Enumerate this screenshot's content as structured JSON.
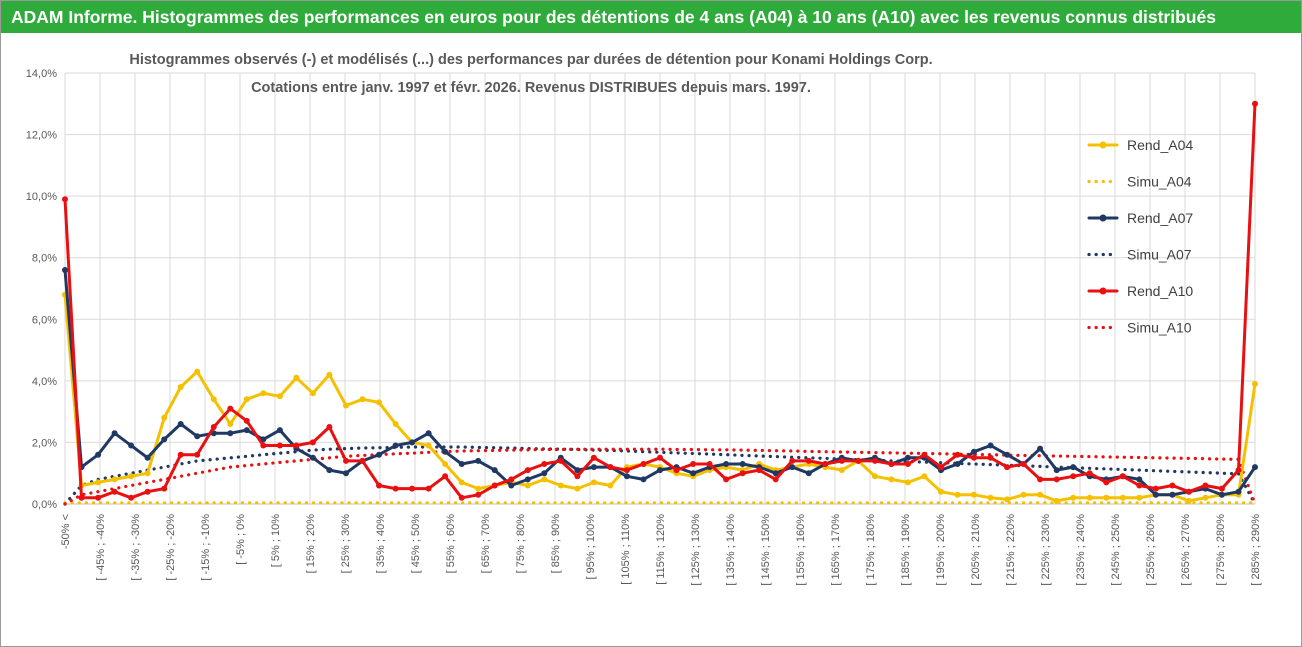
{
  "header": {
    "title": "ADAM Informe. Histogrammes des performances en euros pour des détentions de 4 ans (A04) à 10 ans (A10) avec les revenus connus distribués"
  },
  "colors": {
    "header_band": "#2eab3a",
    "A04": "#f5c000",
    "A07": "#1f3864",
    "A10": "#e81010",
    "grid": "#d9d9d9"
  },
  "chart_data": {
    "type": "line",
    "title_lines": [
      "Histogrammes observés (-) et modélisés (...) des performances par durées de détention pour Konami Holdings Corp.",
      "Cotations entre janv. 1997 et févr. 2026. Revenus DISTRIBUES depuis mars. 1997."
    ],
    "ylim": [
      0,
      14
    ],
    "y_ticks": [
      "0,0%",
      "2,0%",
      "4,0%",
      "6,0%",
      "8,0%",
      "10,0%",
      "12,0%",
      "14,0%"
    ],
    "x_labels": [
      "-50% <",
      "[ -45% ; -40%",
      "[ -35% ; -30%",
      "[ -25% ; -20%",
      "[ -15% ; -10%",
      "[ -5% ; 0%",
      "[ 5% ; 10%",
      "[ 15% ; 20%",
      "[ 25% ; 30%",
      "[ 35% ; 40%",
      "[ 45% ; 50%",
      "[ 55% ; 60%",
      "[ 65% ; 70%",
      "[ 75% ; 80%",
      "[ 85% ; 90%",
      "[ 95% ; 100%",
      "[ 105% ; 110%",
      "[ 115% ; 120%",
      "[ 125% ; 130%",
      "[ 135% ; 140%",
      "[ 145% ; 150%",
      "[ 155% ; 160%",
      "[ 165% ; 170%",
      "[ 175% ; 180%",
      "[ 185% ; 190%",
      "[ 195% ; 200%",
      "[ 205% ; 210%",
      "[ 215% ; 220%",
      "[ 225% ; 230%",
      "[ 235% ; 240%",
      "[ 245% ; 250%",
      "[ 255% ; 260%",
      "[ 265% ; 270%",
      "[ 275% ; 280%",
      "[ 285% ; 290%"
    ],
    "legend_position": "right",
    "grid": true,
    "series": [
      {
        "name": "Rend_A04",
        "style": "solid",
        "color": "#f5c000",
        "values": [
          6.8,
          0.6,
          0.7,
          0.8,
          0.9,
          1.0,
          2.8,
          3.8,
          4.3,
          3.4,
          2.6,
          3.4,
          3.6,
          3.5,
          4.1,
          3.6,
          4.2,
          3.2,
          3.4,
          3.3,
          2.6,
          2.0,
          1.9,
          1.3,
          0.7,
          0.5,
          0.6,
          0.7,
          0.6,
          0.8,
          0.6,
          0.5,
          0.7,
          0.6,
          1.2,
          1.3,
          1.2,
          1.0,
          0.9,
          1.1,
          1.2,
          1.1,
          1.3,
          1.1,
          1.2,
          1.3,
          1.2,
          1.1,
          1.4,
          0.9,
          0.8,
          0.7,
          0.9,
          0.4,
          0.3,
          0.3,
          0.2,
          0.15,
          0.3,
          0.3,
          0.1,
          0.2,
          0.2,
          0.2,
          0.2,
          0.2,
          0.3,
          0.3,
          0.1,
          0.2,
          0.3,
          0.3,
          3.9
        ]
      },
      {
        "name": "Simu_A04",
        "style": "dotted",
        "color": "#f5c000",
        "values": [
          0.04,
          0.04,
          0.04,
          0.04,
          0.04,
          0.04,
          0.04,
          0.04,
          0.04,
          0.04,
          0.04,
          0.04,
          0.04,
          0.04,
          0.04,
          0.04,
          0.04,
          0.04,
          0.04,
          0.04,
          0.04,
          0.04,
          0.04,
          0.04,
          0.04,
          0.04,
          0.04,
          0.04,
          0.04,
          0.04,
          0.04,
          0.04,
          0.04,
          0.04,
          0.04,
          0.04,
          0.04,
          0.04,
          0.04,
          0.04,
          0.04,
          0.04,
          0.04,
          0.04,
          0.04,
          0.04,
          0.04,
          0.04,
          0.04,
          0.04,
          0.04,
          0.04,
          0.04,
          0.04,
          0.04,
          0.04,
          0.04,
          0.04,
          0.04,
          0.04,
          0.04,
          0.04,
          0.04,
          0.04,
          0.04,
          0.04,
          0.04,
          0.04,
          0.04,
          0.04,
          0.04,
          0.04,
          0.04
        ]
      },
      {
        "name": "Rend_A07",
        "style": "solid",
        "color": "#1f3864",
        "values": [
          7.6,
          1.2,
          1.6,
          2.3,
          1.9,
          1.5,
          2.1,
          2.6,
          2.2,
          2.3,
          2.3,
          2.4,
          2.1,
          2.4,
          1.8,
          1.5,
          1.1,
          1.0,
          1.4,
          1.6,
          1.9,
          2.0,
          2.3,
          1.7,
          1.3,
          1.4,
          1.1,
          0.6,
          0.8,
          1.0,
          1.5,
          1.1,
          1.2,
          1.2,
          0.9,
          0.8,
          1.1,
          1.2,
          1.0,
          1.2,
          1.3,
          1.3,
          1.2,
          1.0,
          1.2,
          1.0,
          1.3,
          1.5,
          1.4,
          1.5,
          1.3,
          1.5,
          1.5,
          1.1,
          1.3,
          1.7,
          1.9,
          1.6,
          1.3,
          1.8,
          1.1,
          1.2,
          0.9,
          0.8,
          0.9,
          0.8,
          0.3,
          0.3,
          0.4,
          0.5,
          0.3,
          0.4,
          1.2
        ]
      },
      {
        "name": "Simu_A07",
        "style": "dotted",
        "color": "#1f3864",
        "values": [
          0.0,
          0.6,
          0.8,
          0.9,
          1.0,
          1.1,
          1.2,
          1.3,
          1.4,
          1.45,
          1.5,
          1.55,
          1.6,
          1.65,
          1.7,
          1.75,
          1.78,
          1.8,
          1.82,
          1.83,
          1.84,
          1.85,
          1.85,
          1.85,
          1.85,
          1.84,
          1.83,
          1.82,
          1.8,
          1.79,
          1.78,
          1.77,
          1.75,
          1.74,
          1.72,
          1.7,
          1.68,
          1.66,
          1.64,
          1.62,
          1.6,
          1.58,
          1.56,
          1.54,
          1.52,
          1.5,
          1.48,
          1.46,
          1.44,
          1.42,
          1.4,
          1.38,
          1.36,
          1.34,
          1.32,
          1.3,
          1.28,
          1.26,
          1.24,
          1.22,
          1.2,
          1.18,
          1.16,
          1.14,
          1.12,
          1.1,
          1.08,
          1.06,
          1.04,
          1.02,
          1.0,
          0.98,
          0.0
        ]
      },
      {
        "name": "Rend_A10",
        "style": "solid",
        "color": "#e81010",
        "values": [
          9.9,
          0.2,
          0.2,
          0.4,
          0.2,
          0.4,
          0.5,
          1.6,
          1.6,
          2.5,
          3.1,
          2.7,
          1.9,
          1.9,
          1.9,
          2.0,
          2.5,
          1.4,
          1.4,
          0.6,
          0.5,
          0.5,
          0.5,
          0.9,
          0.2,
          0.3,
          0.6,
          0.8,
          1.1,
          1.3,
          1.4,
          0.9,
          1.5,
          1.2,
          1.1,
          1.3,
          1.5,
          1.1,
          1.3,
          1.3,
          0.8,
          1.0,
          1.1,
          0.8,
          1.4,
          1.4,
          1.3,
          1.4,
          1.4,
          1.4,
          1.3,
          1.3,
          1.6,
          1.2,
          1.6,
          1.5,
          1.5,
          1.2,
          1.3,
          0.8,
          0.8,
          0.9,
          1.0,
          0.7,
          0.9,
          0.6,
          0.5,
          0.6,
          0.4,
          0.6,
          0.5,
          1.1,
          13.0
        ]
      },
      {
        "name": "Simu_A10",
        "style": "dotted",
        "color": "#e81010",
        "values": [
          0.0,
          0.3,
          0.4,
          0.5,
          0.6,
          0.7,
          0.8,
          0.9,
          1.0,
          1.1,
          1.2,
          1.25,
          1.3,
          1.35,
          1.4,
          1.45,
          1.5,
          1.55,
          1.58,
          1.6,
          1.63,
          1.65,
          1.68,
          1.7,
          1.72,
          1.73,
          1.74,
          1.75,
          1.76,
          1.77,
          1.77,
          1.78,
          1.78,
          1.78,
          1.78,
          1.78,
          1.78,
          1.77,
          1.77,
          1.76,
          1.76,
          1.75,
          1.74,
          1.73,
          1.72,
          1.71,
          1.7,
          1.69,
          1.68,
          1.67,
          1.66,
          1.65,
          1.64,
          1.63,
          1.62,
          1.61,
          1.6,
          1.59,
          1.58,
          1.57,
          1.56,
          1.55,
          1.54,
          1.53,
          1.52,
          1.51,
          1.5,
          1.49,
          1.48,
          1.47,
          1.46,
          1.45,
          0.0
        ]
      }
    ]
  }
}
